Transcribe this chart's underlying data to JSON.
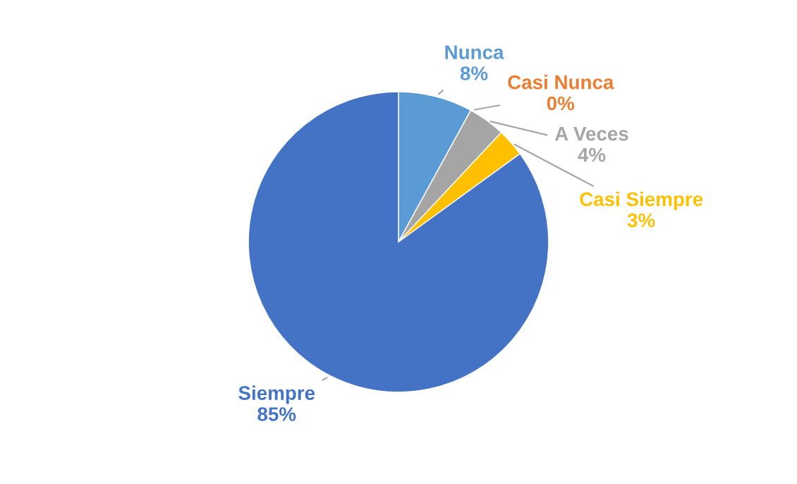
{
  "chart_data": {
    "type": "pie",
    "categories": [
      "Nunca",
      "Casi Nunca",
      "A Veces",
      "Casi Siempre",
      "Siempre"
    ],
    "values": [
      8,
      0,
      4,
      3,
      85
    ],
    "value_labels": [
      "8%",
      "0%",
      "4%",
      "3%",
      "85%"
    ],
    "colors": [
      "#5b9bd5",
      "#ed7d31",
      "#a5a5a5",
      "#ffc000",
      "#4472c4"
    ],
    "legend": false
  }
}
